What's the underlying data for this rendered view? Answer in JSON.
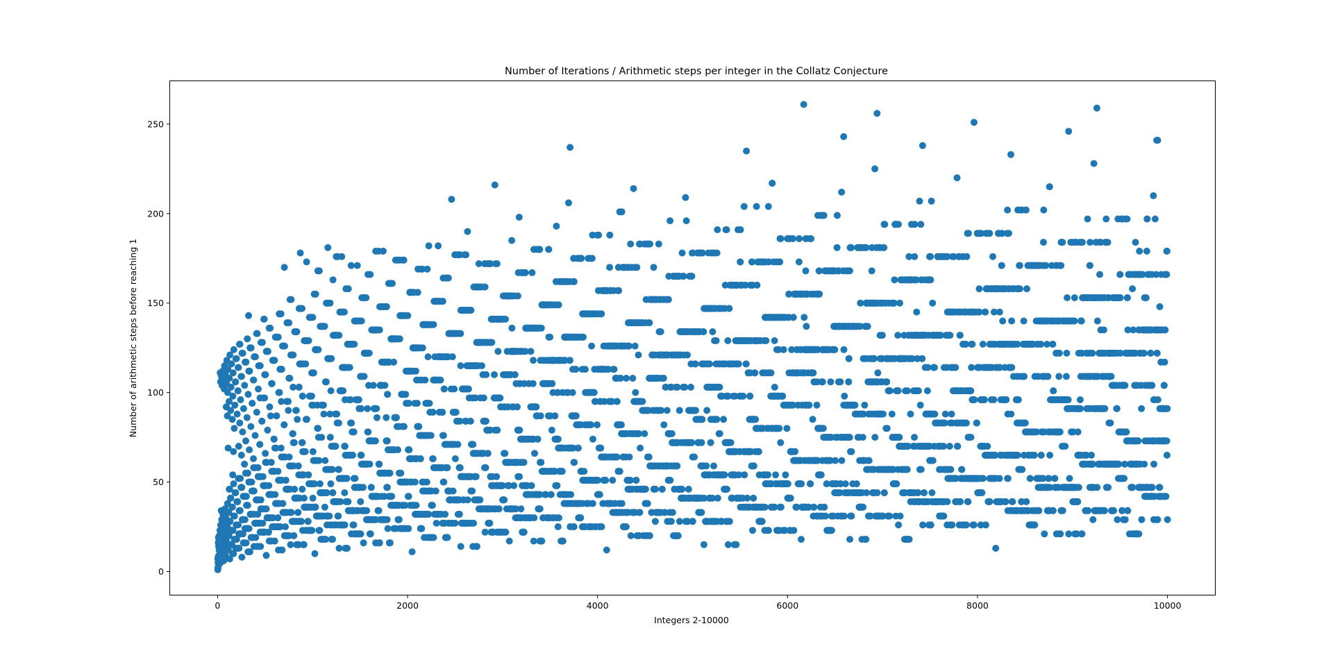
{
  "chart_data": {
    "type": "scatter",
    "title": "Number of Iterations / Arithmetic steps per integer in the Collatz Conjecture",
    "xlabel": "Integers 2-10000",
    "ylabel": "Number of arithmetic steps before reaching 1",
    "xlim": [
      -500,
      10500
    ],
    "ylim": [
      -13,
      274
    ],
    "xticks": [
      0,
      2000,
      4000,
      6000,
      8000,
      10000
    ],
    "yticks": [
      0,
      50,
      100,
      150,
      200,
      250
    ],
    "grid": false,
    "marker_color": "#1f77b4",
    "x_range": [
      2,
      10000
    ],
    "y_definition": "Collatz total stopping time of each integer n from 2 to 10000"
  }
}
